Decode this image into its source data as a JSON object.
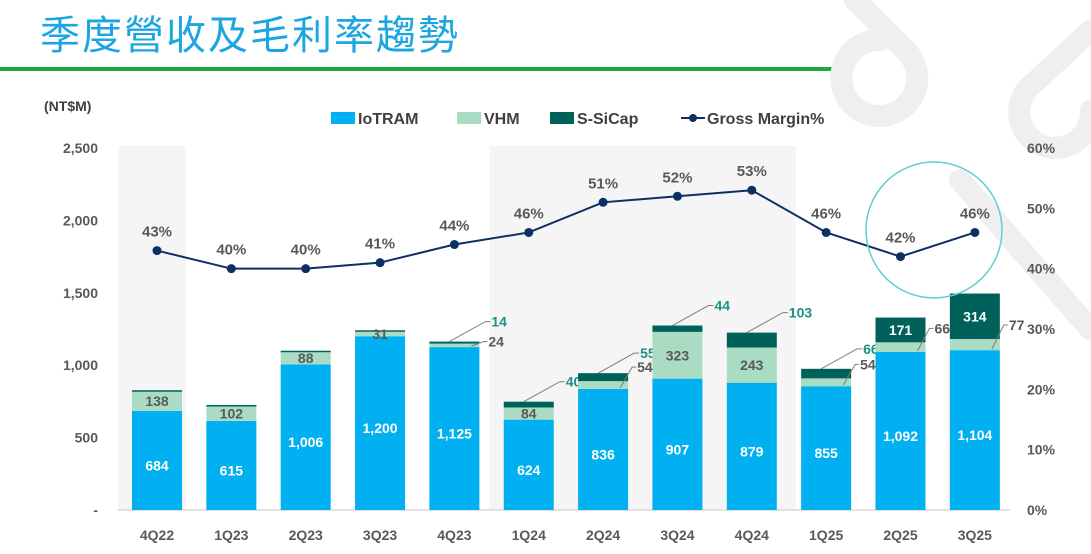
{
  "page": {
    "title": "季度營收及毛利率趨勢"
  },
  "colors": {
    "title": "#1ba6e1",
    "rule": "#21a83a",
    "iotram": "#00b0f0",
    "vhm": "#a9dcc3",
    "ssicap": "#00615a",
    "margin_line": "#0e2f63",
    "highlight_circle": "#5fcfcf",
    "band": "#f5f5f5"
  },
  "chart_data": {
    "type": "bar",
    "subtype": "stacked bar with line on secondary axis",
    "title": "季度營收及毛利率趨勢",
    "unit_label": "(NT$M)",
    "xlabel": "",
    "ylabel": "(NT$M)",
    "categories": [
      "4Q22",
      "1Q23",
      "2Q23",
      "3Q23",
      "4Q23",
      "1Q24",
      "2Q24",
      "3Q24",
      "4Q24",
      "1Q25",
      "2Q25",
      "3Q25"
    ],
    "series": [
      {
        "name": "IoTRAM",
        "type": "bar",
        "values": [
          684,
          615,
          1006,
          1200,
          1125,
          624,
          836,
          907,
          879,
          855,
          1092,
          1104
        ],
        "labels": [
          "684",
          "615",
          "1,006",
          "1,200",
          "1,125",
          "624",
          "836",
          "907",
          "879",
          "855",
          "1,092",
          "1,104"
        ]
      },
      {
        "name": "VHM",
        "type": "bar",
        "values": [
          138,
          102,
          88,
          31,
          24,
          84,
          54,
          323,
          243,
          54,
          66,
          77
        ],
        "labels": [
          "138",
          "102",
          "88",
          "31",
          "24",
          "84",
          "54",
          "323",
          "243",
          "54",
          "66",
          "77"
        ]
      },
      {
        "name": "S-SiCap",
        "type": "bar",
        "values": [
          5,
          8,
          6,
          10,
          14,
          40,
          55,
          44,
          103,
          66,
          171,
          314
        ],
        "labels": [
          null,
          null,
          null,
          null,
          "14",
          "40",
          "55",
          "44",
          "103",
          "66",
          "171",
          "314"
        ]
      },
      {
        "name": "Gross Margin%",
        "type": "line",
        "axis": "right",
        "values": [
          43,
          40,
          40,
          41,
          44,
          46,
          51,
          52,
          53,
          46,
          42,
          46
        ],
        "labels": [
          "43%",
          "40%",
          "40%",
          "41%",
          "44%",
          "46%",
          "51%",
          "52%",
          "53%",
          "46%",
          "42%",
          "46%"
        ]
      }
    ],
    "legend": [
      "IoTRAM",
      "VHM",
      "S-SiCap",
      "Gross Margin%"
    ],
    "legend_position": "top-center",
    "y_left": {
      "min": 0,
      "max": 2500,
      "ticks": [
        0,
        500,
        1000,
        1500,
        2000,
        2500
      ],
      "tick_labels": [
        "-",
        "500",
        "1,000",
        "1,500",
        "2,000",
        "2,500"
      ]
    },
    "y_right": {
      "min": 0,
      "max": 60,
      "ticks": [
        0,
        10,
        20,
        30,
        40,
        50,
        60
      ],
      "tick_labels": [
        "0%",
        "10%",
        "20%",
        "30%",
        "40%",
        "50%",
        "60%"
      ]
    },
    "highlighted_periods": [
      "4Q22",
      "1Q24",
      "2Q24",
      "3Q24",
      "4Q24"
    ],
    "annotation": "circle highlighting gross margin for 2Q25–3Q25",
    "grid": false
  }
}
